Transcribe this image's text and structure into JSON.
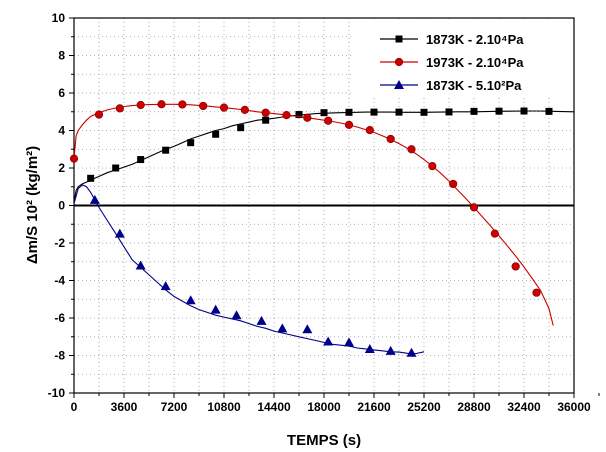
{
  "chart_data": {
    "type": "line",
    "xlabel": "TEMPS (s)",
    "ylabel": "Δm/S 10² (kg/m²)",
    "xlim": [
      0,
      36000
    ],
    "ylim": [
      -10,
      10
    ],
    "x_ticks": [
      "0",
      "3600",
      "7200",
      "10800",
      "14400",
      "18000",
      "21600",
      "25200",
      "28800",
      "32400",
      "36000"
    ],
    "y_ticks": [
      "10",
      "8",
      "6",
      "4",
      "2",
      "0",
      "-2",
      "-4",
      "-6",
      "-8",
      "-10"
    ],
    "grid": true,
    "legend_position": "top-right",
    "series": [
      {
        "name": "1873K - 2.10⁴Pa",
        "color": "#000000",
        "marker": "square",
        "x": [
          0,
          150,
          300,
          600,
          900,
          1200,
          1500,
          1800,
          2400,
          3000,
          3600,
          4200,
          4800,
          5400,
          6000,
          6600,
          7200,
          7800,
          8400,
          9000,
          9600,
          10200,
          10800,
          11400,
          12000,
          12600,
          13200,
          13800,
          14400,
          15000,
          15600,
          16200,
          16800,
          17400,
          18000,
          18600,
          19200,
          19800,
          20400,
          21000,
          21600,
          22200,
          22800,
          23400,
          24000,
          24600,
          25200,
          26400,
          27600,
          28800,
          30000,
          31200,
          32400,
          33600,
          34800,
          36000
        ],
        "values": [
          0.2,
          0.8,
          1.0,
          1.15,
          1.25,
          1.35,
          1.45,
          1.55,
          1.75,
          1.9,
          2.05,
          2.2,
          2.4,
          2.6,
          2.8,
          3.0,
          3.15,
          3.35,
          3.55,
          3.7,
          3.85,
          4.0,
          4.1,
          4.25,
          4.35,
          4.45,
          4.55,
          4.6,
          4.65,
          4.72,
          4.78,
          4.82,
          4.86,
          4.9,
          4.92,
          4.94,
          4.95,
          4.96,
          4.97,
          4.98,
          4.98,
          4.98,
          4.98,
          4.97,
          4.97,
          4.97,
          4.97,
          4.98,
          5.0,
          5.0,
          5.02,
          5.03,
          5.04,
          5.04,
          5.02,
          5.0
        ],
        "marker_x": [
          1200,
          3000,
          4800,
          6600,
          8400,
          10200,
          12000,
          13800,
          16200,
          18000,
          19800,
          21600,
          23400,
          25200,
          27000,
          28800,
          30600,
          32400,
          34200
        ],
        "marker_y": [
          1.45,
          2.0,
          2.45,
          2.95,
          3.35,
          3.8,
          4.15,
          4.55,
          4.85,
          4.95,
          4.97,
          4.98,
          4.98,
          4.97,
          4.99,
          5.02,
          5.03,
          5.04,
          5.02
        ]
      },
      {
        "name": "1973K - 2.10⁴Pa",
        "color": "#cc0000",
        "marker": "circle",
        "x": [
          0,
          150,
          300,
          600,
          900,
          1200,
          1800,
          2400,
          3000,
          3600,
          4200,
          4800,
          5400,
          6000,
          6600,
          7200,
          7800,
          8400,
          9000,
          9600,
          10200,
          10800,
          11400,
          12000,
          12600,
          13200,
          13800,
          14400,
          15000,
          15600,
          16200,
          16800,
          17400,
          18000,
          18600,
          19200,
          19800,
          20400,
          21000,
          21600,
          22200,
          22800,
          23400,
          24000,
          24600,
          25200,
          25800,
          26400,
          27000,
          27600,
          28200,
          28800,
          29400,
          30000,
          30600,
          31200,
          31800,
          32400,
          33000,
          33600,
          34200,
          34500
        ],
        "values": [
          2.5,
          3.7,
          4.0,
          4.3,
          4.55,
          4.75,
          4.95,
          5.1,
          5.2,
          5.28,
          5.33,
          5.36,
          5.38,
          5.39,
          5.4,
          5.4,
          5.39,
          5.37,
          5.34,
          5.3,
          5.26,
          5.22,
          5.17,
          5.12,
          5.06,
          5.0,
          4.95,
          4.9,
          4.85,
          4.8,
          4.74,
          4.68,
          4.62,
          4.55,
          4.48,
          4.4,
          4.3,
          4.18,
          4.05,
          3.9,
          3.72,
          3.52,
          3.3,
          3.05,
          2.77,
          2.45,
          2.1,
          1.72,
          1.3,
          0.85,
          0.38,
          -0.1,
          -0.6,
          -1.1,
          -1.62,
          -2.15,
          -2.7,
          -3.28,
          -3.9,
          -4.55,
          -5.5,
          -6.4
        ],
        "marker_x": [
          0,
          1800,
          3300,
          4800,
          6300,
          7800,
          9300,
          10800,
          12300,
          13800,
          15300,
          16800,
          18300,
          19800,
          21300,
          22800,
          24300,
          25800,
          27300,
          28800,
          30300,
          31800,
          33300
        ],
        "marker_y": [
          2.5,
          4.85,
          5.18,
          5.36,
          5.4,
          5.39,
          5.31,
          5.22,
          5.1,
          4.95,
          4.82,
          4.68,
          4.52,
          4.3,
          4.02,
          3.55,
          3.0,
          2.1,
          1.15,
          -0.1,
          -1.5,
          -3.25,
          -4.65
        ]
      },
      {
        "name": "1873K - 5.10²Pa",
        "color": "#00008b",
        "marker": "triangle",
        "x": [
          0,
          300,
          600,
          900,
          1200,
          1500,
          1800,
          2400,
          3000,
          3600,
          4200,
          4800,
          5400,
          6000,
          6600,
          7200,
          7800,
          8400,
          9000,
          9600,
          10200,
          10800,
          11400,
          12000,
          12600,
          13200,
          13800,
          14400,
          15000,
          15600,
          16200,
          16800,
          17400,
          18000,
          18600,
          19200,
          19800,
          20400,
          21000,
          21600,
          22200,
          22800,
          23400,
          24000,
          24600,
          25200
        ],
        "values": [
          0.1,
          0.9,
          1.1,
          1.0,
          0.7,
          0.3,
          -0.1,
          -0.8,
          -1.5,
          -2.2,
          -2.9,
          -3.3,
          -3.7,
          -4.1,
          -4.5,
          -4.85,
          -5.1,
          -5.35,
          -5.55,
          -5.7,
          -5.85,
          -5.95,
          -6.05,
          -6.15,
          -6.3,
          -6.45,
          -6.55,
          -6.7,
          -6.8,
          -6.9,
          -7.0,
          -7.1,
          -7.2,
          -7.3,
          -7.4,
          -7.45,
          -7.5,
          -7.6,
          -7.65,
          -7.7,
          -7.75,
          -7.8,
          -7.82,
          -7.88,
          -7.9,
          -7.8
        ],
        "marker_x": [
          1500,
          3300,
          4800,
          6600,
          8400,
          10200,
          11700,
          13500,
          15000,
          16800,
          18300,
          19800,
          21300,
          22800,
          24300
        ],
        "marker_y": [
          0.3,
          -1.5,
          -3.2,
          -4.3,
          -5.05,
          -5.55,
          -5.85,
          -6.15,
          -6.55,
          -6.6,
          -7.25,
          -7.3,
          -7.65,
          -7.75,
          -7.85
        ]
      }
    ]
  }
}
